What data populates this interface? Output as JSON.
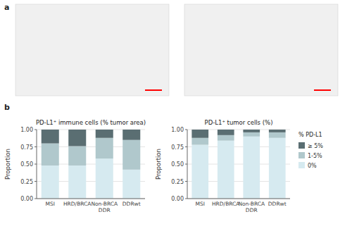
{
  "chart_data": [
    {
      "type": "bar",
      "stacked": true,
      "grid": true,
      "title": "PD-L1⁺ immune cells (% tumor area)",
      "ylabel": "Proportion",
      "annotations": [
        "a",
        "b"
      ],
      "categories": [
        "MSI",
        "HRD/BRCA",
        "Non-BRCA\nDDR",
        "DDRwt"
      ],
      "series": [
        {
          "color": "#d6eaf0",
          "values": [
            0.48,
            0.48,
            0.58,
            0.42
          ]
        },
        {
          "color": "#b0c8cc",
          "values": [
            0.32,
            0.28,
            0.3,
            0.43
          ]
        },
        {
          "color": "#5a6e72",
          "values": [
            0.2,
            0.24,
            0.12,
            0.15
          ]
        }
      ],
      "ylim": [
        0,
        1.0
      ],
      "yticks": [
        {
          "value": 0,
          "label": "0.00"
        },
        {
          "value": 0.25,
          "label": "0.25"
        },
        {
          "value": 0.5,
          "label": "0.50"
        },
        {
          "value": 0.75,
          "label": "0.75"
        },
        {
          "value": 1.0,
          "label": "1.00"
        }
      ]
    },
    {
      "type": "bar",
      "stacked": true,
      "grid": true,
      "title": "PD-L1⁺ tumor cells (%)",
      "ylabel": "Proportion",
      "legend": "right",
      "legend_title": "% PD-L1",
      "categories": [
        "MSI",
        "HRD/BRCA",
        "Non-BRCA\nDDR",
        "DDRwt"
      ],
      "series": [
        {
          "name": "0%",
          "color": "#d6eaf0",
          "values": [
            0.78,
            0.84,
            0.9,
            0.88
          ]
        },
        {
          "name": "1-5%",
          "color": "#b0c8cc",
          "values": [
            0.1,
            0.08,
            0.06,
            0.08
          ]
        },
        {
          "name": "≥ 5%",
          "color": "#5a6e72",
          "values": [
            0.12,
            0.08,
            0.04,
            0.04
          ]
        }
      ],
      "ylim": [
        0,
        1.0
      ],
      "yticks": [
        {
          "value": 0,
          "label": "0.00"
        },
        {
          "value": 0.25,
          "label": "0.25"
        },
        {
          "value": 0.5,
          "label": "0.50"
        },
        {
          "value": 0.75,
          "label": "0.75"
        },
        {
          "value": 1.0,
          "label": "1.00"
        }
      ]
    }
  ]
}
